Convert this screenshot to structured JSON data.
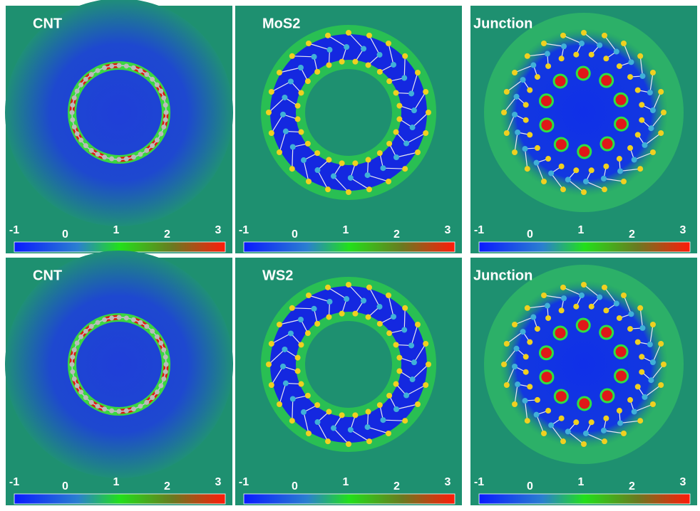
{
  "panels": [
    {
      "title": "CNT",
      "colorbar": {
        "ticks": [
          -1,
          0,
          1,
          2,
          3
        ]
      }
    },
    {
      "title": "MoS2",
      "colorbar": {
        "ticks": [
          -1,
          0,
          1,
          2,
          3
        ]
      }
    },
    {
      "title": "Junction",
      "colorbar": {
        "ticks": [
          -1,
          0,
          1,
          2,
          3
        ]
      }
    },
    {
      "title": "CNT",
      "colorbar": {
        "ticks": [
          -1,
          0,
          1,
          2,
          3
        ]
      }
    },
    {
      "title": "WS2",
      "colorbar": {
        "ticks": [
          -1,
          0,
          1,
          2,
          3
        ]
      }
    },
    {
      "title": "Junction",
      "colorbar": {
        "ticks": [
          -1,
          0,
          1,
          2,
          3
        ]
      }
    }
  ]
}
